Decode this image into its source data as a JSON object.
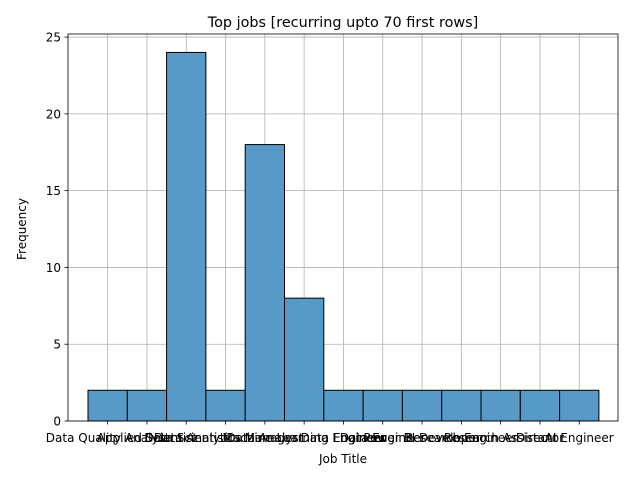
{
  "chart_data": {
    "type": "bar",
    "title": "Top jobs [recurring upto 70 first rows]",
    "xlabel": "Job Title",
    "ylabel": "Frequency",
    "categories": [
      "Data Quality Analyst",
      "Applied Scientist",
      "Data Scientist",
      "Data Analytics Manager",
      "Data Analyst",
      "Machine Learning Engineer",
      "Data Engineer",
      "Data Engineer",
      "Power BI Developer",
      "Research Engineer",
      "Research Assistant",
      "Director",
      "AI Engineer"
    ],
    "values": [
      2,
      2,
      24,
      2,
      18,
      8,
      2,
      2,
      2,
      2,
      2,
      2,
      2
    ],
    "ylim": [
      0,
      25.2
    ],
    "yticks": [
      0,
      5,
      10,
      15,
      20,
      25
    ],
    "grid": true,
    "bar_color": "#5799c7",
    "edge_color": "#000000"
  }
}
